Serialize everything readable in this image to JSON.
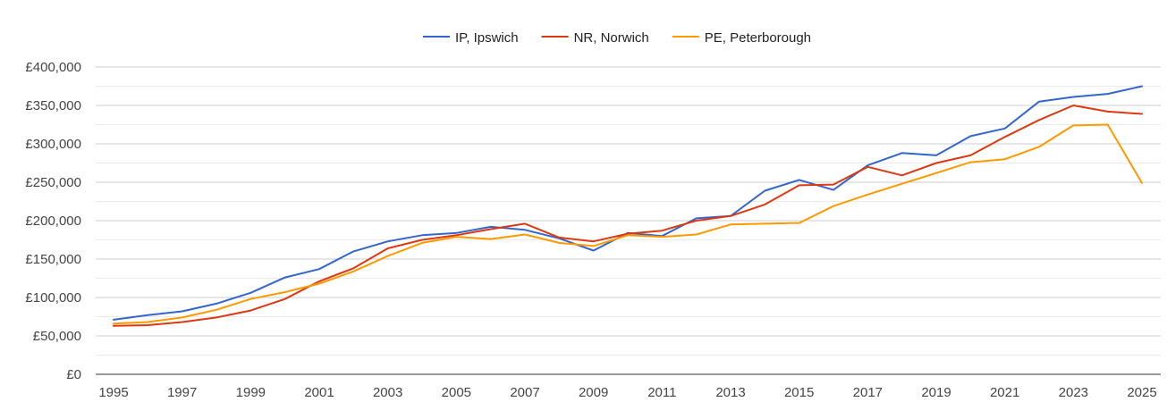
{
  "chart_data": {
    "type": "line",
    "title": "",
    "xlabel": "",
    "ylabel": "",
    "legend_position": "top",
    "grid": true,
    "x": [
      1995,
      1996,
      1997,
      1998,
      1999,
      2000,
      2001,
      2002,
      2003,
      2004,
      2005,
      2006,
      2007,
      2008,
      2009,
      2010,
      2011,
      2012,
      2013,
      2014,
      2015,
      2016,
      2017,
      2018,
      2019,
      2020,
      2021,
      2022,
      2023,
      2024,
      2025
    ],
    "x_tick_labels": [
      "1995",
      "1997",
      "1999",
      "2001",
      "2003",
      "2005",
      "2007",
      "2009",
      "2011",
      "2013",
      "2015",
      "2017",
      "2019",
      "2021",
      "2023",
      "2025"
    ],
    "ylim": [
      0,
      400000
    ],
    "y_ticks": [
      0,
      50000,
      100000,
      150000,
      200000,
      250000,
      300000,
      350000,
      400000
    ],
    "y_tick_labels": [
      "£0",
      "£50,000",
      "£100,000",
      "£150,000",
      "£200,000",
      "£250,000",
      "£300,000",
      "£350,000",
      "£400,000"
    ],
    "series": [
      {
        "name": "IP, Ipswich",
        "color": "#3366cc",
        "values": [
          71000,
          77000,
          82000,
          92000,
          106000,
          126000,
          137000,
          160000,
          173000,
          181000,
          184000,
          192000,
          188000,
          177000,
          161000,
          184000,
          180000,
          203000,
          206000,
          239000,
          253000,
          240000,
          272000,
          288000,
          285000,
          310000,
          320000,
          355000,
          361000,
          365000,
          375000
        ]
      },
      {
        "name": "NR, Norwich",
        "color": "#dc3912",
        "values": [
          63000,
          64000,
          68000,
          74000,
          83000,
          98000,
          121000,
          138000,
          164000,
          175000,
          181000,
          189000,
          196000,
          178000,
          173000,
          183000,
          187000,
          200000,
          206000,
          221000,
          246000,
          247000,
          270000,
          259000,
          275000,
          285000,
          309000,
          331000,
          350000,
          342000,
          339000
        ]
      },
      {
        "name": "PE, Peterborough",
        "color": "#ff9900",
        "values": [
          66000,
          68000,
          74000,
          84000,
          98000,
          107000,
          118000,
          134000,
          154000,
          171000,
          179000,
          176000,
          182000,
          171000,
          167000,
          181000,
          179000,
          182000,
          195000,
          196000,
          197000,
          219000,
          234000,
          248000,
          262000,
          276000,
          280000,
          296000,
          324000,
          325000,
          249000
        ]
      }
    ]
  }
}
